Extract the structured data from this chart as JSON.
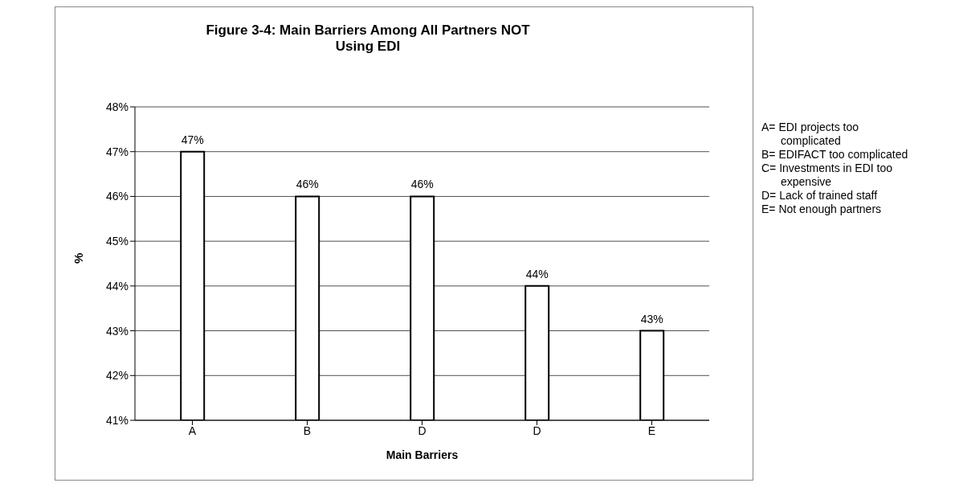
{
  "chart_data": {
    "type": "bar",
    "title": "Figure 3-4: Main Barriers Among All Partners NOT Using EDI",
    "xlabel": "Main Barriers",
    "ylabel": "%",
    "categories": [
      "A",
      "B",
      "D",
      "D",
      "E"
    ],
    "values": [
      47,
      46,
      46,
      44,
      43
    ],
    "value_labels": [
      "47%",
      "46%",
      "46%",
      "44%",
      "43%"
    ],
    "color": "#ffffff",
    "ylim": [
      41,
      48
    ],
    "yticks": [
      {
        "value": 41,
        "label": "41%"
      },
      {
        "value": 42,
        "label": "42%"
      },
      {
        "value": 43,
        "label": "43%"
      },
      {
        "value": 44,
        "label": "44%"
      },
      {
        "value": 45,
        "label": "45%"
      },
      {
        "value": 46,
        "label": "46%"
      },
      {
        "value": 47,
        "label": "47%"
      },
      {
        "value": 48,
        "label": "48%"
      }
    ],
    "grid": "y",
    "annotations": [
      "A= EDI projects too complicated",
      "B= EDIFACT too complicated",
      "C= Investments in EDI too expensive",
      "D= Lack of trained staff",
      "E= Not enough partners"
    ]
  }
}
